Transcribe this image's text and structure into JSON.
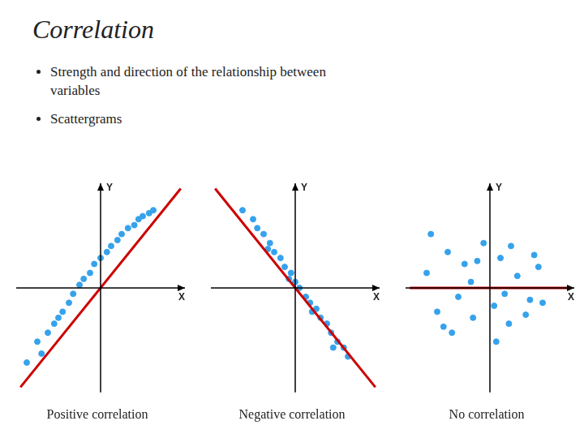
{
  "title": "Correlation",
  "annotations": [
    "Strength and direction of the relationship between\nvariables",
    "Scattergrams"
  ],
  "chart_data": [
    {
      "type": "scatter",
      "title": "Positive correlation",
      "x_label": "X",
      "y_label": "Y",
      "xlim": [
        -4,
        4
      ],
      "ylim": [
        -3.5,
        3.5
      ],
      "grid": false,
      "tick_labels": false,
      "series": [
        {
          "type": "scatter",
          "color": "#36A2EB",
          "x": [
            -3.5,
            -3.0,
            -2.8,
            -2.5,
            -2.2,
            -2.0,
            -1.8,
            -1.5,
            -1.3,
            -1.0,
            -0.8,
            -0.5,
            -0.3,
            0.0,
            0.3,
            0.5,
            0.8,
            1.0,
            1.3,
            1.6,
            1.8,
            2.0,
            2.3,
            2.5
          ],
          "values": [
            -2.5,
            -1.8,
            -2.2,
            -1.5,
            -1.2,
            -1.0,
            -0.8,
            -0.5,
            -0.2,
            0.1,
            0.3,
            0.5,
            0.8,
            1.0,
            1.2,
            1.4,
            1.6,
            1.8,
            2.0,
            2.1,
            2.3,
            2.4,
            2.5,
            2.6
          ]
        },
        {
          "type": "line",
          "color": "#CC0000",
          "x": [
            -3.8,
            3.8
          ],
          "values": [
            -3.325,
            3.325
          ]
        }
      ]
    },
    {
      "type": "scatter",
      "title": "Negative correlation",
      "x_label": "X",
      "y_label": "Y",
      "xlim": [
        -4,
        4
      ],
      "ylim": [
        -3.5,
        3.5
      ],
      "grid": false,
      "tick_labels": false,
      "series": [
        {
          "type": "scatter",
          "color": "#36A2EB",
          "x": [
            -2.5,
            -2.0,
            -1.8,
            -1.5,
            -1.2,
            -1.0,
            -0.7,
            -0.5,
            -0.2,
            0.0,
            0.2,
            0.5,
            0.7,
            1.0,
            1.2,
            1.5,
            1.7,
            2.0,
            2.3,
            2.5,
            -0.3,
            0.8,
            -1.3,
            1.8
          ],
          "values": [
            2.6,
            2.3,
            2.0,
            1.8,
            1.5,
            1.2,
            1.0,
            0.7,
            0.5,
            0.2,
            0.0,
            -0.3,
            -0.5,
            -0.7,
            -1.0,
            -1.2,
            -1.5,
            -1.8,
            -2.0,
            -2.3,
            0.3,
            -0.8,
            1.3,
            -2.0
          ]
        },
        {
          "type": "line",
          "color": "#CC0000",
          "x": [
            -3.8,
            3.8
          ],
          "values": [
            3.325,
            -3.325
          ]
        }
      ]
    },
    {
      "type": "scatter",
      "title": "No correlation",
      "x_label": "X",
      "y_label": "Y",
      "xlim": [
        -4,
        4
      ],
      "ylim": [
        -3.5,
        3.5
      ],
      "grid": false,
      "tick_labels": false,
      "series": [
        {
          "type": "scatter",
          "color": "#36A2EB",
          "x": [
            -3.0,
            -2.5,
            -2.0,
            -1.5,
            -1.2,
            -0.8,
            -0.3,
            0.2,
            0.5,
            0.9,
            1.3,
            1.7,
            2.1,
            2.5,
            -2.8,
            -1.8,
            -0.6,
            0.3,
            1.0,
            1.9,
            -2.2,
            -0.9,
            0.7,
            2.3
          ],
          "values": [
            0.5,
            -0.8,
            1.2,
            -0.3,
            0.8,
            -1.0,
            1.5,
            -0.6,
            1.0,
            -1.2,
            0.4,
            -0.9,
            1.1,
            -0.5,
            1.8,
            -1.5,
            0.9,
            -1.8,
            1.4,
            -0.4,
            -1.3,
            0.2,
            -0.2,
            0.7
          ]
        },
        {
          "type": "line",
          "color": "#CC0000",
          "x": [
            -3.8,
            3.8
          ],
          "values": [
            0,
            0
          ]
        }
      ]
    }
  ]
}
